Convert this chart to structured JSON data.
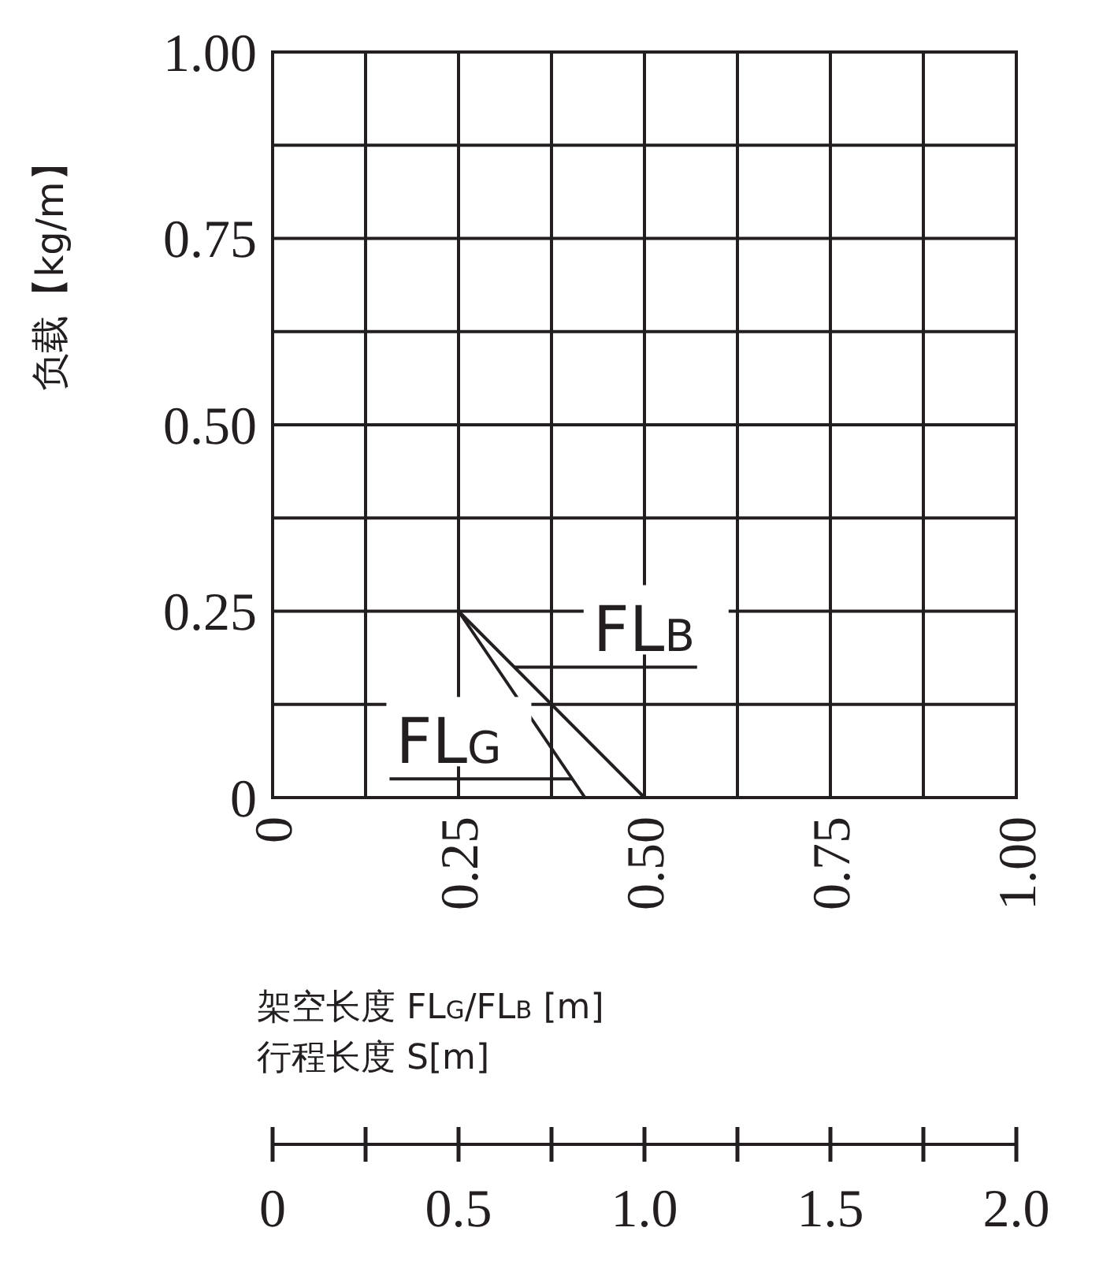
{
  "chart_data": {
    "type": "line",
    "xlabel": "架空长度 FL$_{G}$/FL$_{B}$ [m]",
    "ylabel": "负载【kg/m】",
    "x2label": "行程长度 S[m]",
    "xlim": [
      0,
      1
    ],
    "xticks": [
      0,
      {
        "value": 0.25,
        "label": "0.25"
      },
      {
        "value": 0.5,
        "label": "0.50"
      },
      {
        "value": 0.75,
        "label": "0.75"
      },
      {
        "value": 1,
        "label": "1.00"
      }
    ],
    "ylim": [
      0,
      1
    ],
    "yticks": [
      0,
      {
        "value": 0.25,
        "label": "0.25"
      },
      {
        "value": 0.5,
        "label": "0.50"
      },
      {
        "value": 0.75,
        "label": "0.75"
      },
      {
        "value": 1,
        "label": "1.00"
      }
    ],
    "x2lim": [
      0,
      2
    ],
    "x2ticks": [
      0,
      {
        "value": 0.25,
        "label": null
      },
      {
        "value": 0.5,
        "label": "0.5"
      },
      {
        "value": 0.75,
        "label": null
      },
      {
        "value": 1,
        "label": "1.0"
      },
      {
        "value": 1.25,
        "label": null
      },
      {
        "value": 1.5,
        "label": "1.5"
      },
      {
        "value": 1.75,
        "label": null
      },
      {
        "value": 2,
        "label": "2.0"
      }
    ],
    "series": [
      {
        "name": "FL$_{G}$",
        "color": "#231f20",
        "x": [
          0.25,
          0.42
        ],
        "values": [
          0.25,
          0
        ]
      },
      {
        "name": "FL$_{B}$",
        "color": "#231f20",
        "x": [
          0.25,
          0.5
        ],
        "values": [
          0.25,
          0
        ]
      }
    ],
    "grid": true,
    "marker": "none",
    "line_style": "solid"
  }
}
